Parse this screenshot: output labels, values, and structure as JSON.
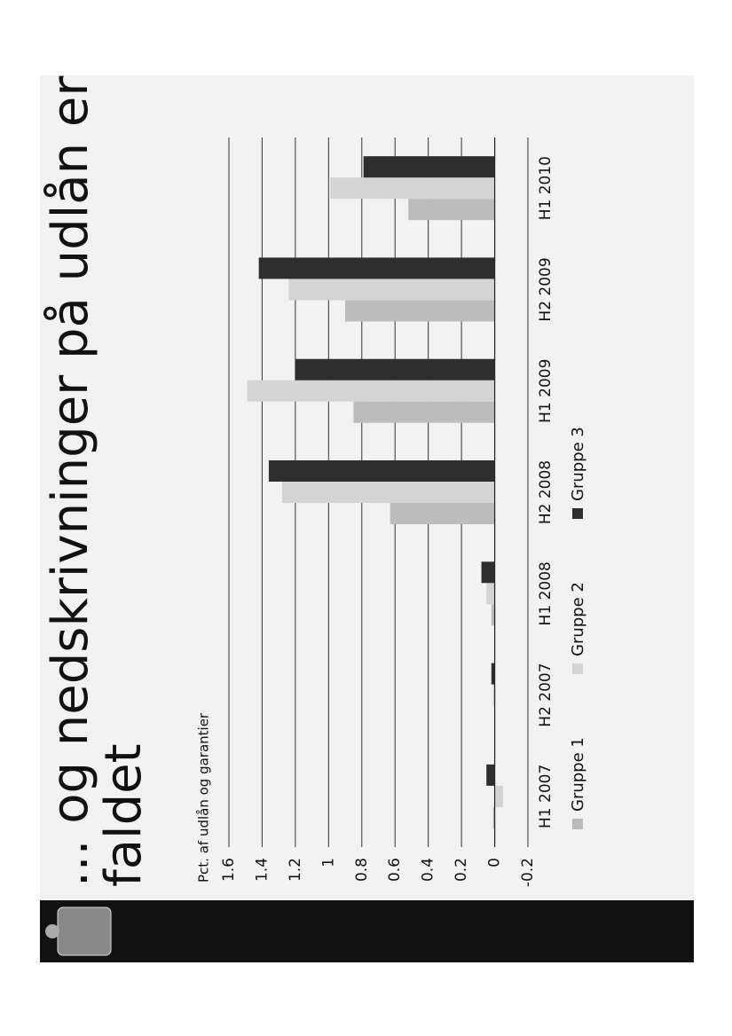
{
  "chart_data": {
    "type": "bar",
    "title": [
      "... og nedskrivninger på udlån er",
      "faldet"
    ],
    "y_axis_label": "Pct. af udlån og garantier",
    "categories": [
      "H1 2007",
      "H2 2007",
      "H1 2008",
      "H2 2008",
      "H1 2009",
      "H2 2009",
      "H1 2010"
    ],
    "series": [
      {
        "name": "Gruppe 1",
        "color": "#bcbcbc",
        "values": [
          0.01,
          0.0,
          0.02,
          0.63,
          0.85,
          0.9,
          0.52
        ]
      },
      {
        "name": "Gruppe 2",
        "color": "#d4d4d4",
        "values": [
          -0.05,
          0.01,
          0.05,
          1.28,
          1.49,
          1.24,
          0.99
        ]
      },
      {
        "name": "Gruppe 3",
        "color": "#2e2e2e",
        "values": [
          0.05,
          0.02,
          0.08,
          1.36,
          1.2,
          1.42,
          0.79
        ]
      }
    ],
    "ylim": [
      -0.2,
      1.6
    ],
    "yticks": [
      -0.2,
      0,
      0.2,
      0.4,
      0.6,
      0.8,
      1,
      1.2,
      1.4,
      1.6
    ],
    "grid": true
  }
}
